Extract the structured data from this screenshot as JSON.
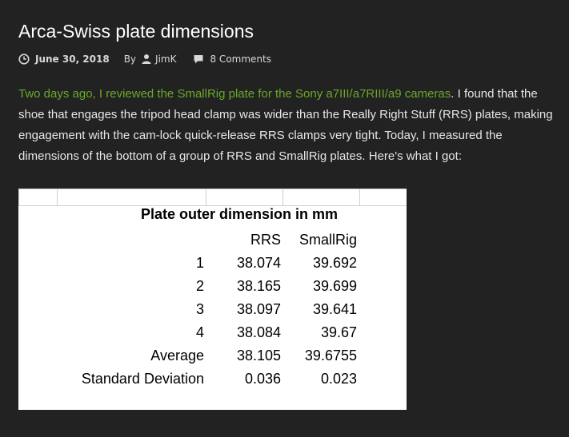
{
  "post": {
    "title": "Arca-Swiss plate dimensions",
    "date": "June 30, 2018",
    "by_label": "By",
    "author": "JimK",
    "comments": "8 Comments"
  },
  "intro": {
    "link_text": "Two days ago, I reviewed the SmallRig plate for the Sony a7III/a7RIII/a9 cameras",
    "body_text": ". I found that the shoe that engages the tripod head clamp was wider than the Really Right Stuff (RRS) plates, making engagement with the cam-lock quick-release RRS clamps very tight. Today, I measured the dimensions of the bottom of a group of RRS and SmallRig plates. Here's what I got:"
  },
  "icons": {
    "clock": "clock-icon",
    "user": "user-icon",
    "comment": "comment-icon"
  },
  "colors": {
    "background": "#222222",
    "link": "#6aa82a",
    "text": "#e6e6e6"
  },
  "spreadsheet": {
    "title": "Plate outer dimension in mm",
    "headers": [
      "RRS",
      "SmallRig"
    ],
    "rows": [
      {
        "label": "1",
        "rrs": "38.074",
        "smallrig": "39.692"
      },
      {
        "label": "2",
        "rrs": "38.165",
        "smallrig": "39.699"
      },
      {
        "label": "3",
        "rrs": "38.097",
        "smallrig": "39.641"
      },
      {
        "label": "4",
        "rrs": "38.084",
        "smallrig": "39.67"
      },
      {
        "label": "Average",
        "rrs": "38.105",
        "smallrig": "39.6755"
      },
      {
        "label": "Standard Deviation",
        "rrs": "0.036",
        "smallrig": "0.023"
      }
    ]
  }
}
